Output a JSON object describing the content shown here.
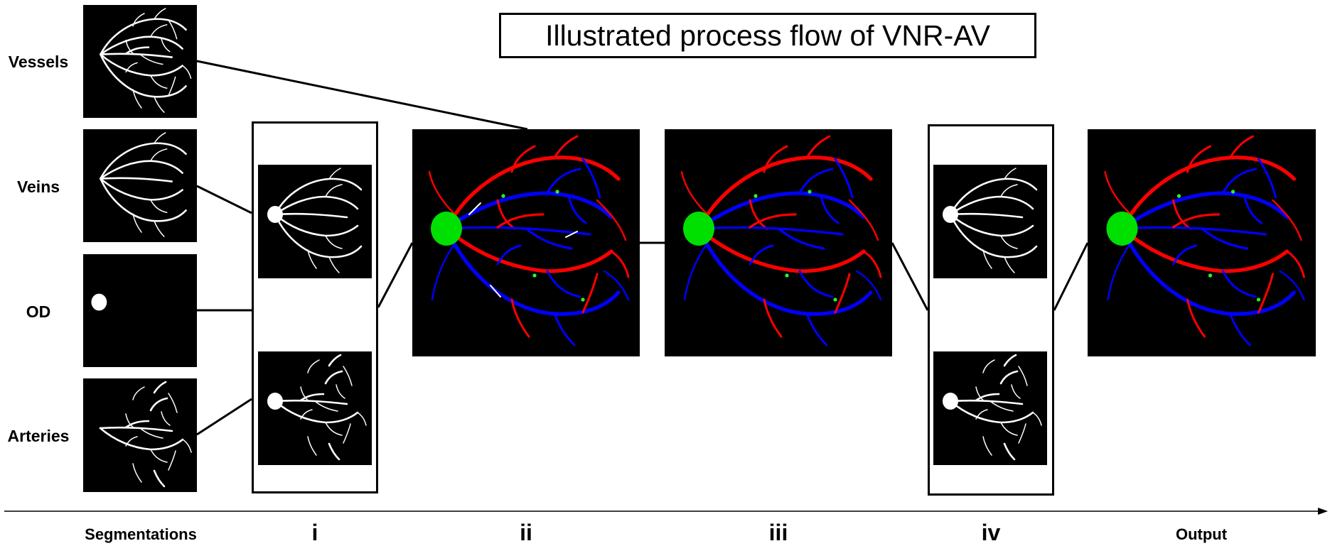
{
  "title": "Illustrated process flow of VNR-AV",
  "segmentations": [
    {
      "label": "Vessels",
      "type": "vessels"
    },
    {
      "label": "Veins",
      "type": "veins"
    },
    {
      "label": "OD",
      "type": "od"
    },
    {
      "label": "Arteries",
      "type": "arteries"
    }
  ],
  "stages": [
    {
      "label": "Segmentations"
    },
    {
      "label": "i"
    },
    {
      "label": "ii"
    },
    {
      "label": "iii"
    },
    {
      "label": "iv"
    },
    {
      "label": "Output"
    }
  ],
  "colors": {
    "artery": "#ff0000",
    "vein": "#0000ff",
    "optic_disc": "#00e000",
    "crossing": "#22ff22",
    "mask": "#ffffff",
    "background": "#000000"
  }
}
